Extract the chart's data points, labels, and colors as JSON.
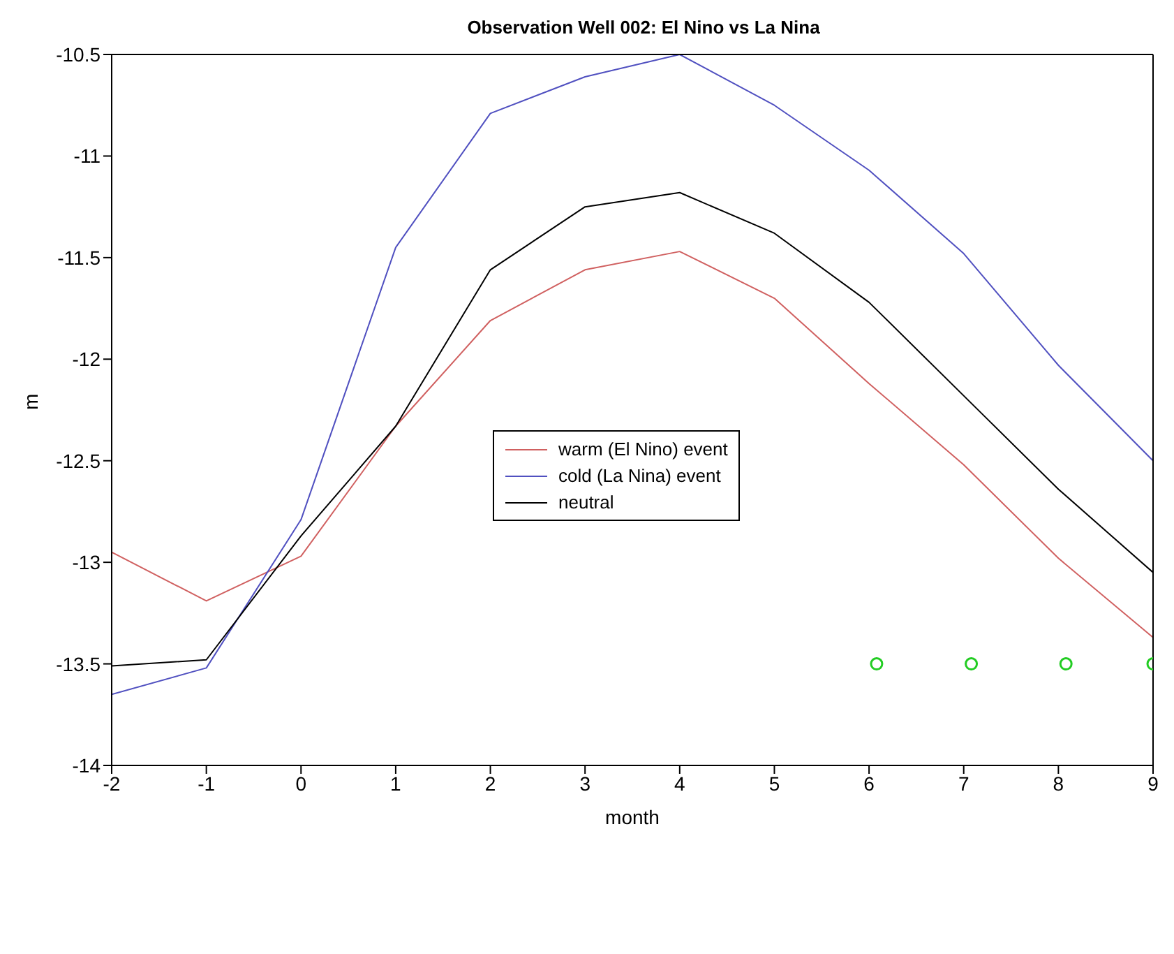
{
  "chart_data": {
    "type": "line",
    "title": "Observation Well 002: El Nino vs La Nina",
    "xlabel": "month",
    "ylabel": "m",
    "x": [
      -2,
      -1,
      0,
      1,
      2,
      3,
      4,
      5,
      6,
      7,
      8,
      9
    ],
    "series": [
      {
        "name": "warm (El Nino) event",
        "color": "#d06060",
        "values": [
          -12.95,
          -13.19,
          -12.97,
          -12.33,
          -11.81,
          -11.56,
          -11.47,
          -11.7,
          -12.12,
          -12.52,
          -12.98,
          -13.37
        ]
      },
      {
        "name": "cold (La Nina) event",
        "color": "#5050c0",
        "values": [
          -13.65,
          -13.52,
          -12.79,
          -11.45,
          -10.79,
          -10.61,
          -10.5,
          -10.75,
          -11.07,
          -11.48,
          -12.03,
          -12.5
        ]
      },
      {
        "name": "neutral",
        "color": "#000000",
        "values": [
          -13.51,
          -13.48,
          -12.87,
          -12.33,
          -11.56,
          -11.25,
          -11.18,
          -11.38,
          -11.72,
          -12.18,
          -12.64,
          -13.05
        ]
      },
      {
        "type": "scatter",
        "marker": "circle",
        "color": "#22cc22",
        "x": [
          6.08,
          7.08,
          8.08,
          9
        ],
        "values": [
          -13.5,
          -13.5,
          -13.5,
          -13.5
        ]
      }
    ],
    "xlim": [
      -2,
      9
    ],
    "xticks": [
      -2,
      -1,
      0,
      1,
      2,
      3,
      4,
      5,
      6,
      7,
      8,
      9
    ],
    "ylim": [
      -14,
      -10.5
    ],
    "yticks": [
      -14,
      -13.5,
      -13,
      -12.5,
      -12,
      -11.5,
      -11,
      -10.5
    ],
    "legend": "center",
    "line_style": "solid",
    "marker": "none"
  }
}
